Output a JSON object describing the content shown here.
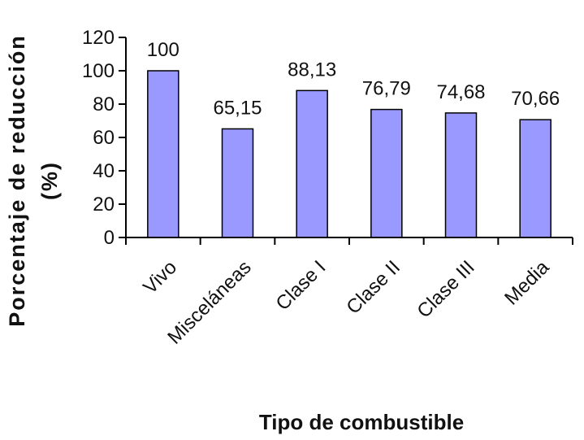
{
  "chart_data": {
    "type": "bar",
    "title": "",
    "xlabel": "Tipo de combustible",
    "ylabel_line1": "Porcentaje de reducción",
    "ylabel_line2": "(%)",
    "categories": [
      "Vivo",
      "Misceláneas",
      "Clase I",
      "Clase II",
      "Clase III",
      "Media"
    ],
    "values": [
      100,
      65.15,
      88.13,
      76.79,
      74.68,
      70.66
    ],
    "data_labels": [
      "100",
      "65,15",
      "88,13",
      "76,79",
      "74,68",
      "70,66"
    ],
    "ylim": [
      0,
      120
    ],
    "yticks": [
      0,
      20,
      40,
      60,
      80,
      100,
      120
    ],
    "grid": false,
    "legend": "none",
    "colors": {
      "bar_fill": "#9999ff",
      "bar_stroke": "#000000",
      "axis": "#000000"
    }
  }
}
